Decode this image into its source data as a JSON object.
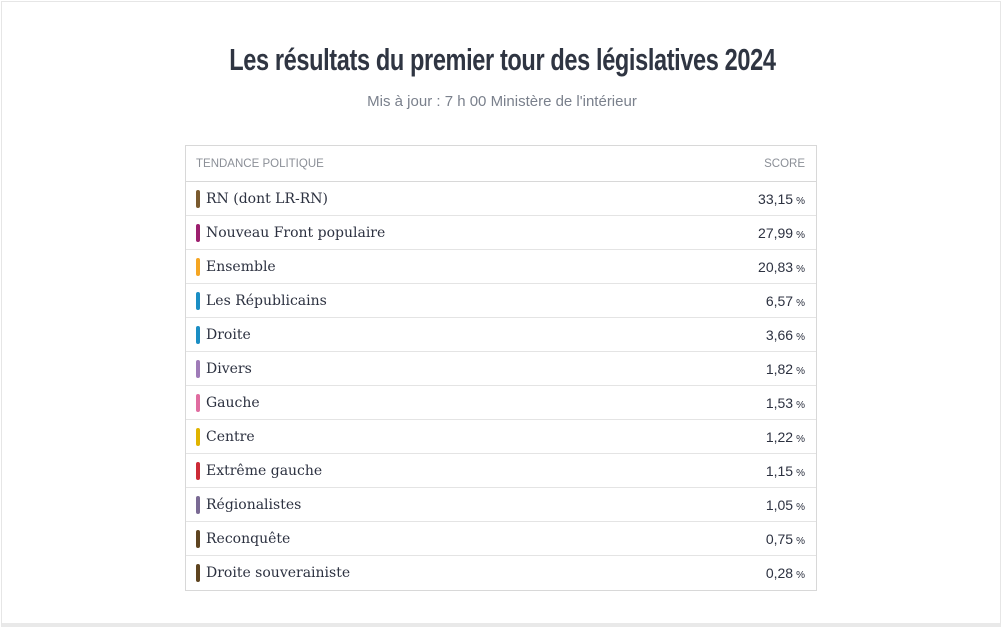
{
  "title": "Les résultats du premier tour des législatives 2024",
  "subtitle": "Mis à jour : 7 h 00 Ministère de l'intérieur",
  "table": {
    "headers": {
      "party": "TENDANCE POLITIQUE",
      "score": "SCORE"
    },
    "unit": "%",
    "rows": [
      {
        "name": "RN (dont LR-RN)",
        "score": "33,15",
        "color": "#7a5a2e"
      },
      {
        "name": "Nouveau Front populaire",
        "score": "27,99",
        "color": "#9c1f6e"
      },
      {
        "name": "Ensemble",
        "score": "20,83",
        "color": "#f5a623"
      },
      {
        "name": "Les Républicains",
        "score": "6,57",
        "color": "#1b8ec4"
      },
      {
        "name": "Droite",
        "score": "3,66",
        "color": "#1b8ec4"
      },
      {
        "name": "Divers",
        "score": "1,82",
        "color": "#9f7bb8"
      },
      {
        "name": "Gauche",
        "score": "1,53",
        "color": "#e06ca0"
      },
      {
        "name": "Centre",
        "score": "1,22",
        "color": "#e0b400"
      },
      {
        "name": "Extrême gauche",
        "score": "1,15",
        "color": "#cc2a36"
      },
      {
        "name": "Régionalistes",
        "score": "1,05",
        "color": "#7a6a94"
      },
      {
        "name": "Reconquête",
        "score": "0,75",
        "color": "#5e4420"
      },
      {
        "name": "Droite souverainiste",
        "score": "0,28",
        "color": "#5e4420"
      }
    ]
  }
}
